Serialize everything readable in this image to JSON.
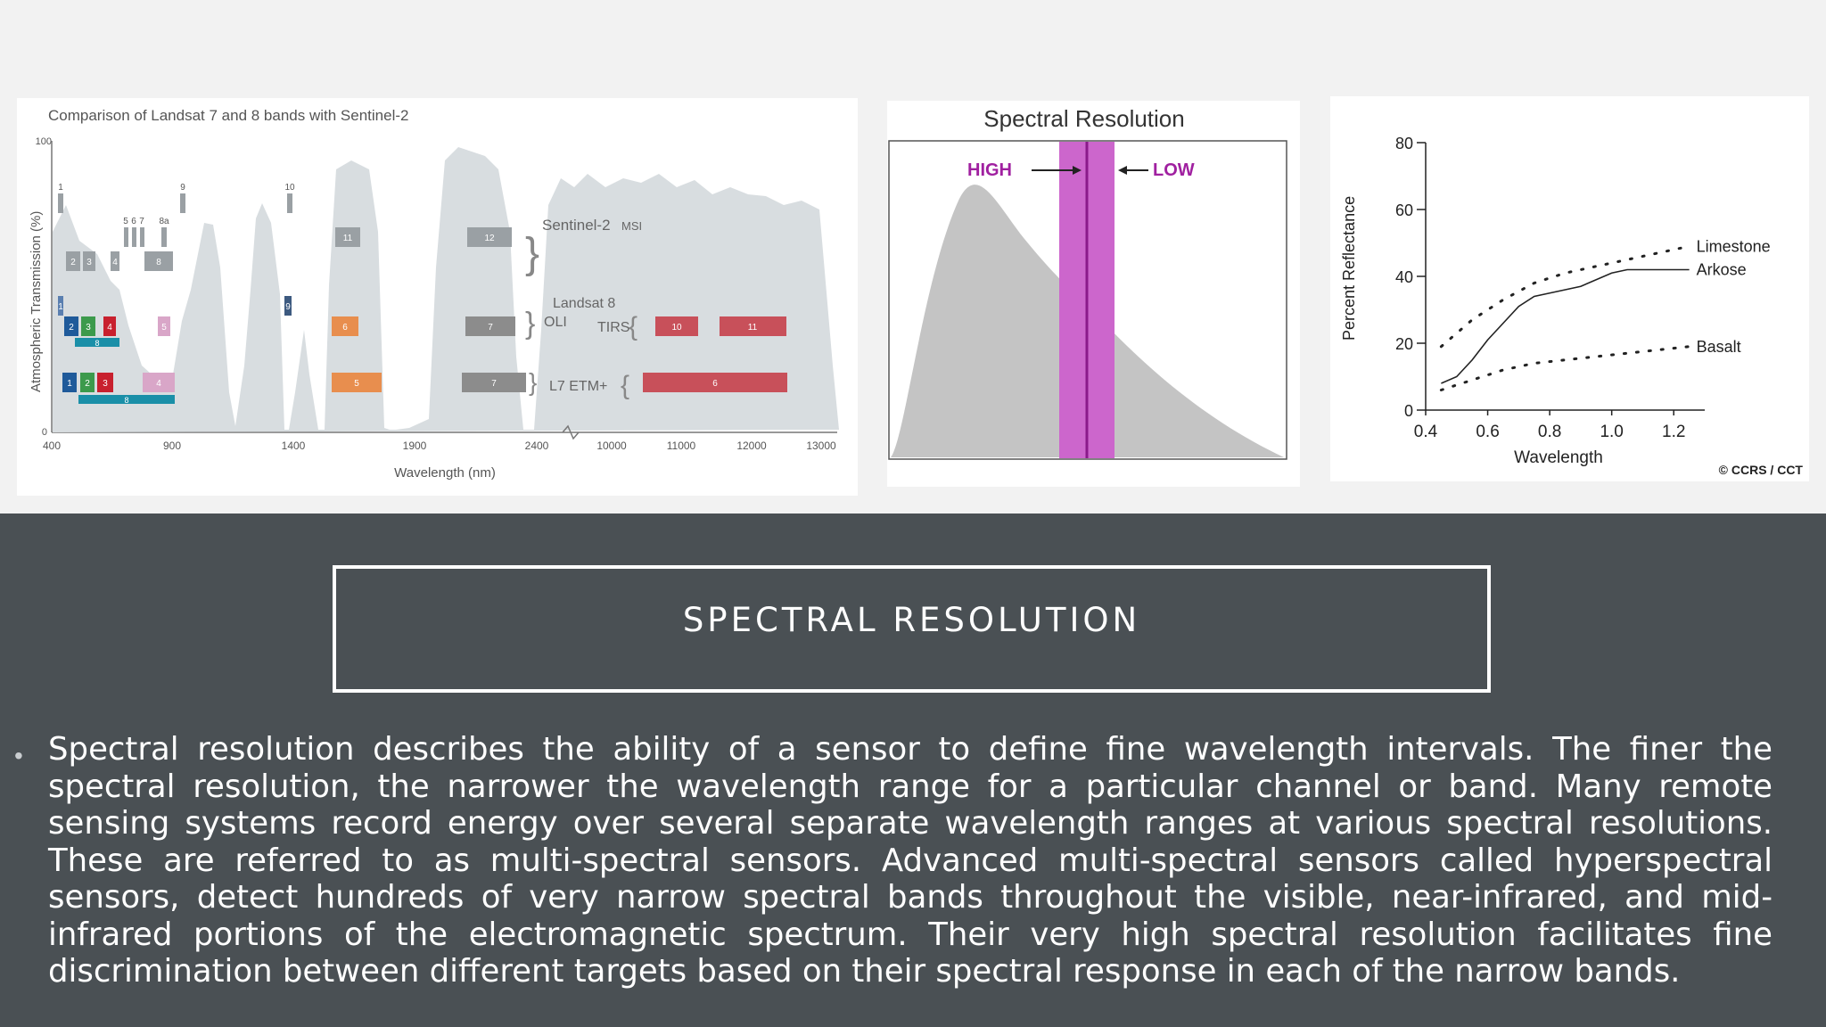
{
  "slide": {
    "title": "SPECTRAL RESOLUTION",
    "body": "Spectral resolution describes the ability of a sensor to define fine wavelength intervals. The finer the spectral resolution, the narrower the wavelength range for a particular channel or band. Many remote sensing systems record energy over several separate wavelength ranges at various spectral resolutions. These are referred to as multi-spectral sensors. Advanced multi-spectral sensors called hyperspectral sensors, detect hundreds of very narrow spectral bands throughout the visible, near-infrared, and mid-infrared portions of the electromagnetic spectrum. Their very high spectral resolution facilitates fine discrimination between different targets based on their spectral response in each of the narrow bands."
  },
  "fig1": {
    "title": "Comparison of Landsat 7 and 8 bands with Sentinel-2",
    "ylabel": "Atmospheric Transmission (%)",
    "xlabel": "Wavelength (nm)",
    "y_ticks": [
      "100",
      "0"
    ],
    "x_ticks": [
      "400",
      "900",
      "1400",
      "1900",
      "2400",
      "10000",
      "11000",
      "12000",
      "13000"
    ],
    "sentinel_label": "Sentinel-2",
    "sentinel_sub": "MSI",
    "landsat8_label": "Landsat 8",
    "oli_label": "OLI",
    "tirs_label": "TIRS",
    "l7_label": "L7 ETM+",
    "bands": {
      "s2": [
        "1",
        "9",
        "10",
        "5",
        "6",
        "7",
        "8a",
        "2",
        "3",
        "4",
        "8",
        "11",
        "12"
      ],
      "l8": [
        "1",
        "2",
        "3",
        "4",
        "5",
        "8",
        "9",
        "6",
        "7",
        "10",
        "11"
      ],
      "l7": [
        "1",
        "2",
        "3",
        "4",
        "8",
        "5",
        "7",
        "6"
      ]
    }
  },
  "fig2": {
    "title": "Spectral Resolution",
    "high_label": "HIGH",
    "low_label": "LOW",
    "colors": {
      "band": "#cc66cc",
      "line": "#8a1a8a",
      "label": "#a020a0",
      "curve": "#c4c4c4"
    }
  },
  "chart_data": {
    "type": "line",
    "title": "",
    "xlabel": "Wavelength",
    "ylabel": "Percent Reflectance",
    "xlim": [
      0.4,
      1.3
    ],
    "ylim": [
      0,
      80
    ],
    "x_ticks": [
      "0.4",
      "0.6",
      "0.8",
      "1.0",
      "1.2"
    ],
    "y_ticks": [
      "0",
      "20",
      "40",
      "60",
      "80"
    ],
    "credit": "© CCRS / CCT",
    "series": [
      {
        "name": "Limestone",
        "style": "dotted",
        "x": [
          0.45,
          0.55,
          0.65,
          0.75,
          0.85,
          0.95,
          1.05,
          1.15,
          1.25
        ],
        "y": [
          19,
          27,
          33,
          38,
          41,
          43,
          45,
          47,
          49
        ]
      },
      {
        "name": "Arkose",
        "style": "solid",
        "x": [
          0.45,
          0.5,
          0.55,
          0.6,
          0.65,
          0.7,
          0.75,
          0.8,
          0.9,
          1.0,
          1.05,
          1.1,
          1.25
        ],
        "y": [
          8,
          10,
          15,
          21,
          26,
          31,
          34,
          35,
          37,
          41,
          42,
          42,
          42
        ]
      },
      {
        "name": "Basalt",
        "style": "dotted",
        "x": [
          0.45,
          0.55,
          0.65,
          0.75,
          0.85,
          0.95,
          1.05,
          1.15,
          1.25
        ],
        "y": [
          6,
          9,
          12,
          14,
          15,
          16,
          17,
          18,
          19
        ]
      }
    ]
  }
}
